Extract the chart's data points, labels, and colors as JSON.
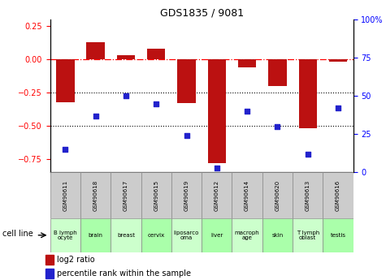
{
  "title": "GDS1835 / 9081",
  "samples": [
    "GSM90611",
    "GSM90618",
    "GSM90617",
    "GSM90615",
    "GSM90619",
    "GSM90612",
    "GSM90614",
    "GSM90620",
    "GSM90613",
    "GSM90616"
  ],
  "cell_lines": [
    "B lymph\nocyte",
    "brain",
    "breast",
    "cervix",
    "liposarco\noma",
    "liver",
    "macroph\nage",
    "skin",
    "T lymph\noblast",
    "testis"
  ],
  "cell_line_alt": [
    false,
    true,
    false,
    true,
    false,
    true,
    false,
    true,
    false,
    true
  ],
  "log2_ratio": [
    -0.32,
    0.13,
    0.03,
    0.08,
    -0.33,
    -0.78,
    -0.06,
    -0.2,
    -0.52,
    -0.02
  ],
  "percentile_rank": [
    15,
    37,
    50,
    45,
    24,
    3,
    40,
    30,
    12,
    42
  ],
  "ylim_left": [
    -0.85,
    0.3
  ],
  "ylim_right": [
    0,
    100
  ],
  "left_ticks": [
    0.25,
    0.0,
    -0.25,
    -0.5,
    -0.75
  ],
  "right_ticks": [
    100,
    75,
    50,
    25,
    0
  ],
  "bar_color": "#bb1111",
  "dot_color": "#2222cc",
  "hline_y": 0.0,
  "dotted_lines": [
    -0.25,
    -0.5
  ],
  "legend_bar_label": "log2 ratio",
  "legend_dot_label": "percentile rank within the sample",
  "cell_line_label": "cell line",
  "cell_color_light": "#aaffaa",
  "cell_color_lighter": "#ccffcc",
  "gsm_box_color": "#cccccc",
  "bg_color": "#ffffff"
}
